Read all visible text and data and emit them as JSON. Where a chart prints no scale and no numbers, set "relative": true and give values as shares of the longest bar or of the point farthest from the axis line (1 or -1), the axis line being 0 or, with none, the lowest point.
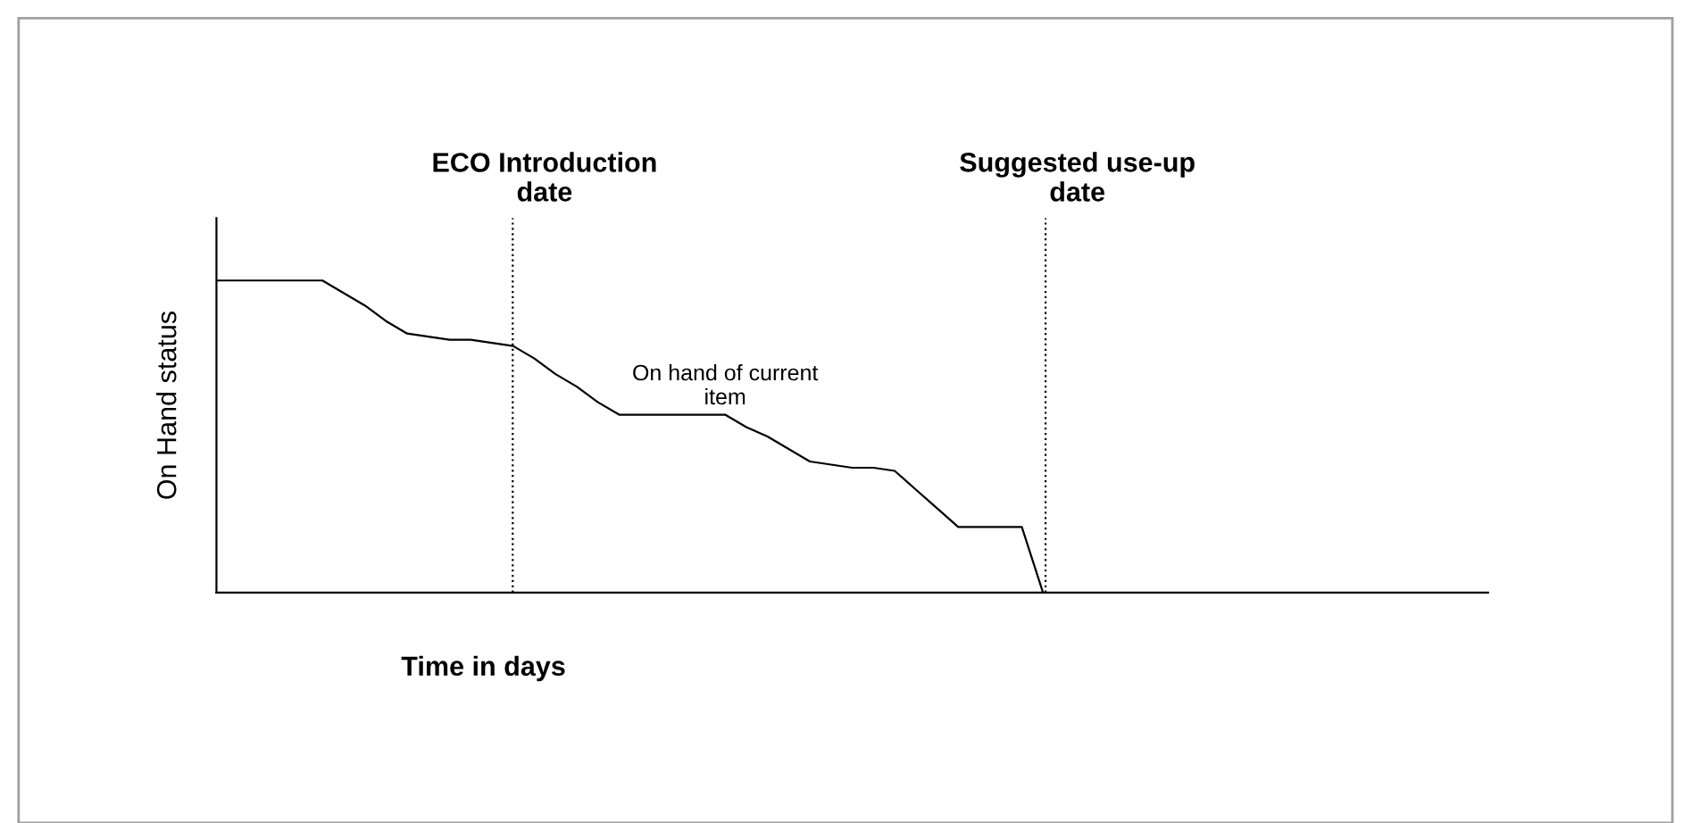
{
  "chart_data": {
    "type": "line",
    "relative": true,
    "xlabel": "Time in days",
    "ylabel": "On Hand status",
    "categories": [
      null,
      null,
      null,
      null,
      null,
      null,
      null,
      null,
      null,
      null,
      null,
      null,
      null,
      null,
      null,
      null,
      null,
      null,
      null,
      null,
      null,
      null,
      null,
      null,
      null,
      null,
      null,
      null,
      null,
      null,
      null,
      null,
      null,
      null,
      null,
      null,
      null,
      null,
      null,
      null,
      null,
      null,
      null,
      null,
      null,
      null,
      null,
      null,
      null,
      null,
      null,
      null,
      null,
      null,
      null,
      null,
      null,
      null,
      null,
      null,
      null
    ],
    "series": [
      {
        "color": "#000000",
        "values": [
          1,
          1,
          1,
          1,
          1,
          1,
          0.96,
          0.92,
          0.87,
          0.83,
          0.82,
          0.81,
          0.81,
          0.8,
          0.79,
          0.75,
          0.7,
          0.66,
          0.61,
          0.57,
          0.57,
          0.57,
          0.57,
          0.57,
          0.57,
          0.53,
          0.5,
          0.46,
          0.42,
          0.41,
          0.4,
          0.4,
          0.39,
          0.33,
          0.27,
          0.21,
          0.21,
          0.21,
          0.21,
          0,
          null,
          null,
          null,
          null,
          null,
          null,
          null,
          null,
          null,
          null,
          null,
          null,
          null,
          null,
          null,
          null,
          null,
          null,
          null,
          null,
          null
        ]
      }
    ],
    "annotations": [
      "ECO Introduction\ndate",
      "Suggested use-up\ndate",
      "On hand of current\nitem"
    ],
    "legend": false,
    "marker": "none",
    "line_style": "solid"
  }
}
